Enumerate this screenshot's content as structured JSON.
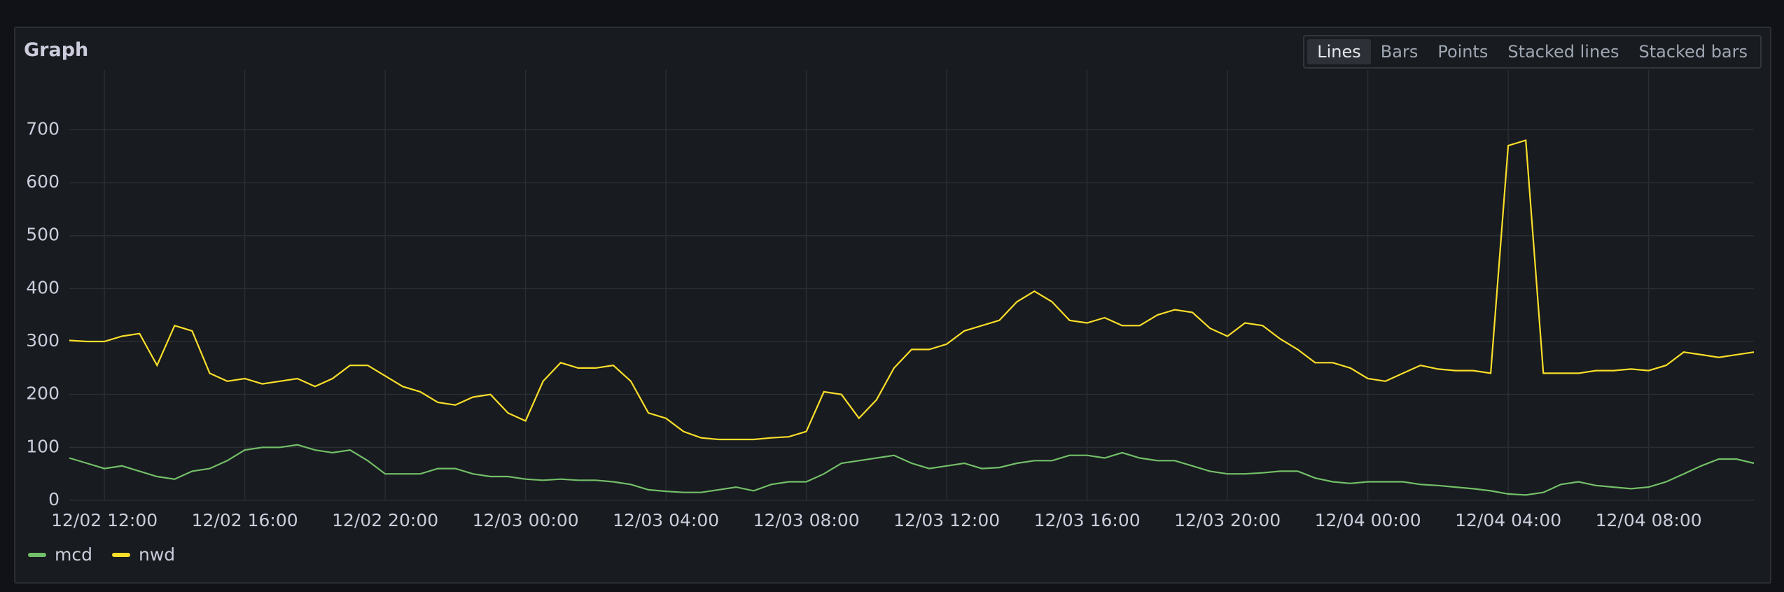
{
  "title": "Graph",
  "view_options": {
    "options": [
      "Lines",
      "Bars",
      "Points",
      "Stacked lines",
      "Stacked bars"
    ],
    "selected": "Lines"
  },
  "chart_data": {
    "type": "line",
    "x": [
      "12/02 11:00",
      "12/02 11:30",
      "12/02 12:00",
      "12/02 12:30",
      "12/02 13:00",
      "12/02 13:30",
      "12/02 14:00",
      "12/02 14:30",
      "12/02 15:00",
      "12/02 15:30",
      "12/02 16:00",
      "12/02 16:30",
      "12/02 17:00",
      "12/02 17:30",
      "12/02 18:00",
      "12/02 18:30",
      "12/02 19:00",
      "12/02 19:30",
      "12/02 20:00",
      "12/02 20:30",
      "12/02 21:00",
      "12/02 21:30",
      "12/02 22:00",
      "12/02 22:30",
      "12/02 23:00",
      "12/02 23:30",
      "12/03 00:00",
      "12/03 00:30",
      "12/03 01:00",
      "12/03 01:30",
      "12/03 02:00",
      "12/03 02:30",
      "12/03 03:00",
      "12/03 03:30",
      "12/03 04:00",
      "12/03 04:30",
      "12/03 05:00",
      "12/03 05:30",
      "12/03 06:00",
      "12/03 06:30",
      "12/03 07:00",
      "12/03 07:30",
      "12/03 08:00",
      "12/03 08:30",
      "12/03 09:00",
      "12/03 09:30",
      "12/03 10:00",
      "12/03 10:30",
      "12/03 11:00",
      "12/03 11:30",
      "12/03 12:00",
      "12/03 12:30",
      "12/03 13:00",
      "12/03 13:30",
      "12/03 14:00",
      "12/03 14:30",
      "12/03 15:00",
      "12/03 15:30",
      "12/03 16:00",
      "12/03 16:30",
      "12/03 17:00",
      "12/03 17:30",
      "12/03 18:00",
      "12/03 18:30",
      "12/03 19:00",
      "12/03 19:30",
      "12/03 20:00",
      "12/03 20:30",
      "12/03 21:00",
      "12/03 21:30",
      "12/03 22:00",
      "12/03 22:30",
      "12/03 23:00",
      "12/03 23:30",
      "12/04 00:00",
      "12/04 00:30",
      "12/04 01:00",
      "12/04 01:30",
      "12/04 02:00",
      "12/04 02:30",
      "12/04 03:00",
      "12/04 03:30",
      "12/04 04:00",
      "12/04 04:30",
      "12/04 05:00",
      "12/04 05:30",
      "12/04 06:00",
      "12/04 06:30",
      "12/04 07:00",
      "12/04 07:30",
      "12/04 08:00",
      "12/04 08:30",
      "12/04 09:00",
      "12/04 09:30",
      "12/04 10:00",
      "12/04 10:30",
      "12/04 11:00"
    ],
    "xticks": [
      "12/02 12:00",
      "12/02 16:00",
      "12/02 20:00",
      "12/03 00:00",
      "12/03 04:00",
      "12/03 08:00",
      "12/03 12:00",
      "12/03 16:00",
      "12/03 20:00",
      "12/04 00:00",
      "12/04 04:00",
      "12/04 08:00"
    ],
    "ylim": [
      0,
      760
    ],
    "yticks": [
      0,
      100,
      200,
      300,
      400,
      500,
      600,
      700
    ],
    "grid": true,
    "legend": "bottom-left",
    "series": [
      {
        "name": "mcd",
        "color": "#73bf69",
        "values": [
          80,
          70,
          60,
          65,
          55,
          45,
          40,
          55,
          60,
          75,
          95,
          100,
          100,
          105,
          95,
          90,
          95,
          75,
          50,
          50,
          50,
          60,
          60,
          50,
          45,
          45,
          40,
          38,
          40,
          38,
          38,
          35,
          30,
          20,
          17,
          15,
          15,
          20,
          25,
          18,
          30,
          35,
          35,
          50,
          70,
          75,
          80,
          85,
          70,
          60,
          65,
          70,
          60,
          62,
          70,
          75,
          75,
          85,
          85,
          80,
          90,
          80,
          75,
          75,
          65,
          55,
          50,
          50,
          52,
          55,
          55,
          42,
          35,
          32,
          35,
          35,
          35,
          30,
          28,
          25,
          22,
          18,
          12,
          10,
          15,
          30,
          35,
          28,
          25,
          22,
          25,
          35,
          50,
          65,
          78,
          78,
          70
        ]
      },
      {
        "name": "nwd",
        "color": "#fade2a",
        "values": [
          302,
          300,
          300,
          310,
          315,
          255,
          330,
          320,
          240,
          225,
          230,
          220,
          225,
          230,
          215,
          230,
          255,
          255,
          235,
          215,
          205,
          185,
          180,
          195,
          200,
          165,
          150,
          225,
          260,
          250,
          250,
          255,
          225,
          165,
          155,
          130,
          118,
          115,
          115,
          115,
          118,
          120,
          130,
          205,
          200,
          155,
          190,
          250,
          285,
          285,
          295,
          320,
          330,
          340,
          375,
          395,
          375,
          340,
          335,
          345,
          330,
          330,
          350,
          360,
          355,
          325,
          310,
          335,
          330,
          305,
          285,
          260,
          260,
          250,
          230,
          225,
          240,
          255,
          248,
          245,
          245,
          240,
          670,
          680,
          240,
          240,
          240,
          245,
          245,
          248,
          245,
          255,
          280,
          275,
          270,
          275,
          280
        ]
      }
    ]
  }
}
